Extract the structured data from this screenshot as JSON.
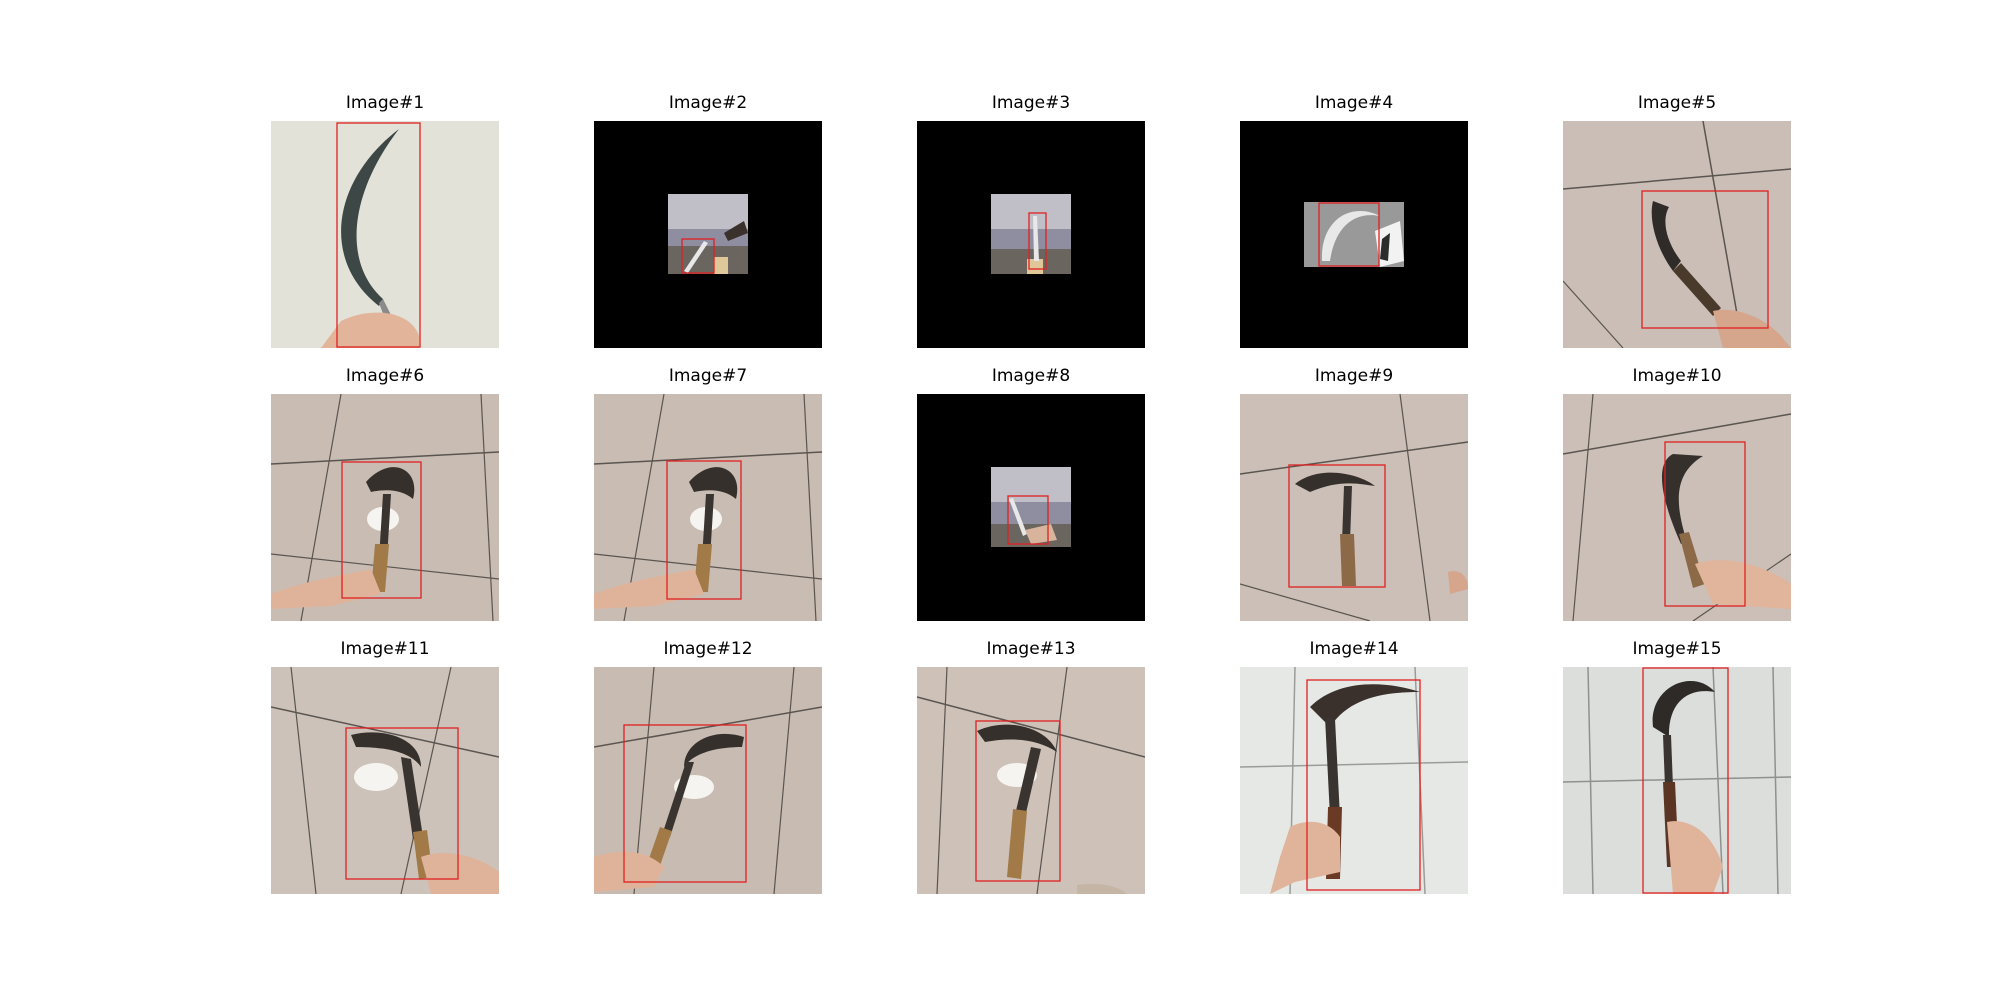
{
  "figure": {
    "panels": [
      {
        "title": "Image#1",
        "scene": "wall",
        "background": "#e4e4dc",
        "black_padding": false
      },
      {
        "title": "Image#2",
        "scene": "room-small",
        "background": "#000000",
        "black_padding": true
      },
      {
        "title": "Image#3",
        "scene": "room-small",
        "background": "#000000",
        "black_padding": true
      },
      {
        "title": "Image#4",
        "scene": "grayscale-small",
        "background": "#000000",
        "black_padding": true
      },
      {
        "title": "Image#5",
        "scene": "marble-floor",
        "background": "#cbbeb6",
        "black_padding": false
      },
      {
        "title": "Image#6",
        "scene": "marble-floor",
        "background": "#c9bcb3",
        "black_padding": false
      },
      {
        "title": "Image#7",
        "scene": "marble-floor",
        "background": "#c9bcb3",
        "black_padding": false
      },
      {
        "title": "Image#8",
        "scene": "room-small",
        "background": "#000000",
        "black_padding": true
      },
      {
        "title": "Image#9",
        "scene": "marble-floor",
        "background": "#cbbfb7",
        "black_padding": false
      },
      {
        "title": "Image#10",
        "scene": "marble-floor",
        "background": "#cbbfb7",
        "black_padding": false
      },
      {
        "title": "Image#11",
        "scene": "marble-floor",
        "background": "#cdc2ba",
        "black_padding": false
      },
      {
        "title": "Image#12",
        "scene": "marble-floor",
        "background": "#c8bbb2",
        "black_padding": false
      },
      {
        "title": "Image#13",
        "scene": "marble-floor",
        "background": "#cdc1b8",
        "black_padding": false
      },
      {
        "title": "Image#14",
        "scene": "white-tile",
        "background": "#e6e8e6",
        "black_padding": false
      },
      {
        "title": "Image#15",
        "scene": "white-tile",
        "background": "#dcdedc",
        "black_padding": false
      }
    ],
    "box_color": "#e02020",
    "object": "sickle"
  }
}
